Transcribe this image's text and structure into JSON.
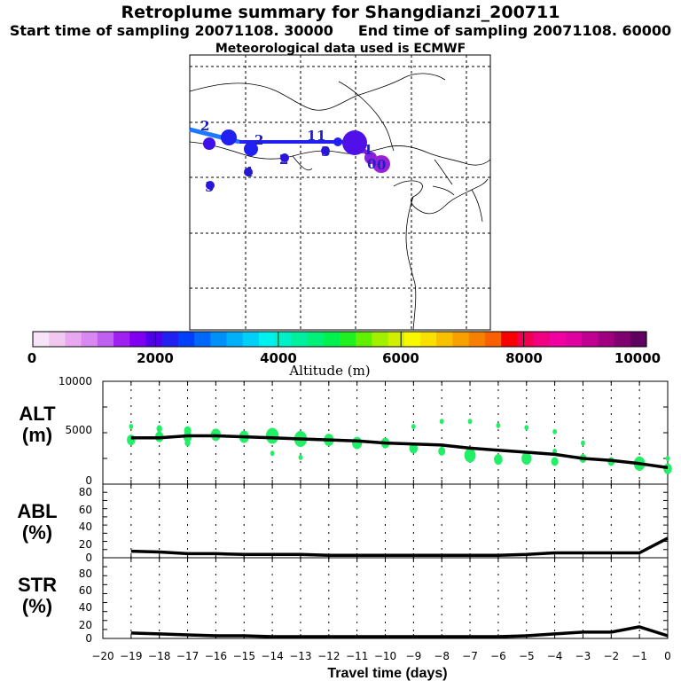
{
  "header": {
    "title": "Retroplume summary for Shangdianzi_200711",
    "start_label": "Start time of sampling 20071108. 30000",
    "end_label": "End time of sampling 20071108. 60000",
    "met_label": "Meteorological data used is ECMWF"
  },
  "colorbar": {
    "label": "Altitude  (m)",
    "ticks": [
      "0",
      "2000",
      "4000",
      "6000",
      "8000",
      "10000"
    ],
    "colors": [
      "#f8e4f8",
      "#f0c8f0",
      "#e8a8f0",
      "#d888f0",
      "#c060f0",
      "#a020f0",
      "#8000f0",
      "#5000e8",
      "#2020f0",
      "#0040f8",
      "#0068f8",
      "#0090f8",
      "#00b0f8",
      "#00d0f8",
      "#00f0f0",
      "#00f0c8",
      "#00f0a0",
      "#00f078",
      "#00f050",
      "#20f020",
      "#60f000",
      "#a0f000",
      "#d0f000",
      "#f8f800",
      "#f8e000",
      "#f8c000",
      "#f8a000",
      "#f88000",
      "#f86000",
      "#f80000",
      "#f00050",
      "#f00080",
      "#f000a0",
      "#e000a0",
      "#c00090",
      "#a00080",
      "#800070",
      "#600060"
    ]
  },
  "map": {
    "plume_color": "#2020f0",
    "start_track_color": "#1e78ff",
    "end_track_color": "#8a1ad8",
    "cluster_labels": [
      "2",
      "2",
      "1",
      "1",
      "3",
      "1",
      "0",
      "0",
      "2",
      "4",
      "5"
    ]
  },
  "panels": {
    "alt": {
      "label_line1": "ALT",
      "label_line2": "(m)"
    },
    "abl": {
      "label_line1": "ABL",
      "label_line2": "(%)"
    },
    "str": {
      "label_line1": "STR",
      "label_line2": "(%)"
    }
  },
  "xaxis_title": "Travel time (days)",
  "chart_data": [
    {
      "type": "line",
      "title": "ALT",
      "xlabel": "Travel time (days)",
      "ylabel": "Altitude (m)",
      "xlim": [
        -20,
        0
      ],
      "ylim": [
        0,
        10000
      ],
      "yticks": [
        "10000",
        "5000",
        "0"
      ],
      "x": [
        -19,
        -18,
        -17,
        -16,
        -15,
        -14,
        -13,
        -12,
        -11,
        -10,
        -9,
        -8,
        -7,
        -6,
        -5,
        -4,
        -3,
        -2,
        -1,
        0
      ],
      "values": [
        4500,
        4500,
        4700,
        4700,
        4600,
        4500,
        4400,
        4300,
        4200,
        4000,
        3900,
        3800,
        3500,
        3300,
        3100,
        2900,
        2500,
        2300,
        2000,
        1600
      ],
      "clusters": [
        {
          "x": -19,
          "y": 4300,
          "size": 6
        },
        {
          "x": -19,
          "y": 5600,
          "size": 3
        },
        {
          "x": -18,
          "y": 4600,
          "size": 6
        },
        {
          "x": -18,
          "y": 5400,
          "size": 4
        },
        {
          "x": -17,
          "y": 4600,
          "size": 6
        },
        {
          "x": -17,
          "y": 5200,
          "size": 5
        },
        {
          "x": -17,
          "y": 4000,
          "size": 4
        },
        {
          "x": -16,
          "y": 4800,
          "size": 7
        },
        {
          "x": -15,
          "y": 4600,
          "size": 7
        },
        {
          "x": -14,
          "y": 4700,
          "size": 9
        },
        {
          "x": -14,
          "y": 3000,
          "size": 3
        },
        {
          "x": -13,
          "y": 4400,
          "size": 9
        },
        {
          "x": -13,
          "y": 2600,
          "size": 3
        },
        {
          "x": -12,
          "y": 4300,
          "size": 7
        },
        {
          "x": -11,
          "y": 4000,
          "size": 7
        },
        {
          "x": -10,
          "y": 4000,
          "size": 6
        },
        {
          "x": -9,
          "y": 3500,
          "size": 6
        },
        {
          "x": -9,
          "y": 5600,
          "size": 3
        },
        {
          "x": -8,
          "y": 3200,
          "size": 5
        },
        {
          "x": -8,
          "y": 6100,
          "size": 3
        },
        {
          "x": -7,
          "y": 2800,
          "size": 8
        },
        {
          "x": -7,
          "y": 6100,
          "size": 3
        },
        {
          "x": -6,
          "y": 2400,
          "size": 6
        },
        {
          "x": -6,
          "y": 5700,
          "size": 3
        },
        {
          "x": -5,
          "y": 2500,
          "size": 7
        },
        {
          "x": -5,
          "y": 5500,
          "size": 3
        },
        {
          "x": -4,
          "y": 2200,
          "size": 5
        },
        {
          "x": -4,
          "y": 3200,
          "size": 3
        },
        {
          "x": -4,
          "y": 5100,
          "size": 3
        },
        {
          "x": -3,
          "y": 2500,
          "size": 5
        },
        {
          "x": -3,
          "y": 4000,
          "size": 3
        },
        {
          "x": -2,
          "y": 2200,
          "size": 5
        },
        {
          "x": -1,
          "y": 2000,
          "size": 8
        },
        {
          "x": 0,
          "y": 1500,
          "size": 6
        },
        {
          "x": 0,
          "y": 2500,
          "size": 3
        }
      ]
    },
    {
      "type": "line",
      "title": "ABL",
      "xlabel": "Travel time (days)",
      "ylabel": "ABL (%)",
      "xlim": [
        -20,
        0
      ],
      "ylim": [
        0,
        90
      ],
      "yticks": [
        "80",
        "60",
        "40",
        "20",
        "0"
      ],
      "x": [
        -19,
        -18,
        -17,
        -16,
        -15,
        -14,
        -13,
        -12,
        -11,
        -10,
        -9,
        -8,
        -7,
        -6,
        -5,
        -4,
        -3,
        -2,
        -1,
        0
      ],
      "values": [
        8,
        7,
        5,
        5,
        4,
        4,
        4,
        3,
        3,
        3,
        3,
        3,
        3,
        3,
        4,
        6,
        6,
        6,
        6,
        24
      ]
    },
    {
      "type": "line",
      "title": "STR",
      "xlabel": "Travel time (days)",
      "ylabel": "STR (%)",
      "xlim": [
        -20,
        0
      ],
      "ylim": [
        0,
        90
      ],
      "yticks": [
        "80",
        "60",
        "40",
        "20",
        "0"
      ],
      "x": [
        -19,
        -18,
        -17,
        -16,
        -15,
        -14,
        -13,
        -12,
        -11,
        -10,
        -9,
        -8,
        -7,
        -6,
        -5,
        -4,
        -3,
        -2,
        -1,
        0
      ],
      "values": [
        6,
        5,
        4,
        3,
        3,
        2,
        2,
        2,
        2,
        2,
        2,
        2,
        2,
        2,
        3,
        5,
        7,
        7,
        13,
        3
      ]
    }
  ],
  "xticks": [
    "−20",
    "−19",
    "−18",
    "−17",
    "−16",
    "−15",
    "−14",
    "−13",
    "−12",
    "−11",
    "−10",
    "−9",
    "−8",
    "−7",
    "−6",
    "−5",
    "−4",
    "−3",
    "−2",
    "−1",
    "0"
  ]
}
